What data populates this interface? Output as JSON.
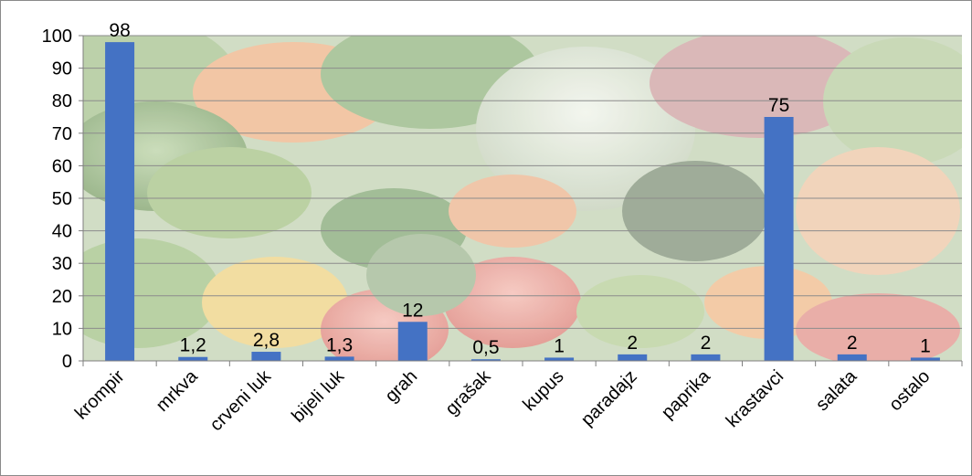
{
  "colors": {
    "bar": "#4472c4",
    "grid": "#8c8c8c",
    "axis": "#7f7f7f",
    "border": "#8a8a8a"
  },
  "chart_data": {
    "type": "bar",
    "title": "",
    "xlabel": "",
    "ylabel": "",
    "ylim": [
      0,
      100
    ],
    "yticks": [
      0,
      10,
      20,
      30,
      40,
      50,
      60,
      70,
      80,
      90,
      100
    ],
    "grid": true,
    "legend": "none",
    "background": "vegetables photo",
    "categories": [
      "krompir",
      "mrkva",
      "crveni luk",
      "bijeli luk",
      "grah",
      "grašak",
      "kupus",
      "paradajz",
      "paprika",
      "krastavci",
      "salata",
      "ostalo"
    ],
    "values": [
      98,
      1.2,
      2.8,
      1.3,
      12,
      0.5,
      1,
      2,
      2,
      75,
      2,
      1
    ],
    "data_labels": [
      "98",
      "1,2",
      "2,8",
      "1,3",
      "12",
      "0,5",
      "1",
      "2",
      "2",
      "75",
      "2",
      "1"
    ]
  }
}
